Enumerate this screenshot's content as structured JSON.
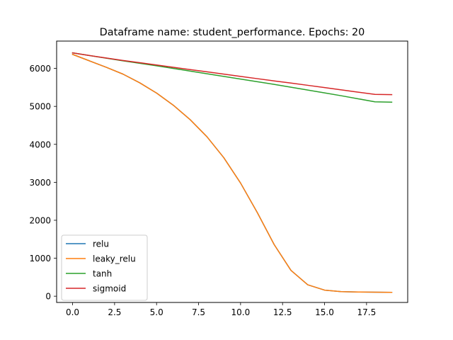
{
  "chart_data": {
    "type": "line",
    "title": "Dataframe name: student_performance. Epochs: 20",
    "xlabel": "",
    "ylabel": "",
    "x": [
      0,
      1,
      2,
      3,
      4,
      5,
      6,
      7,
      8,
      9,
      10,
      11,
      12,
      13,
      14,
      15,
      16,
      17,
      18,
      19
    ],
    "xlim": [
      -0.95,
      19.95
    ],
    "ylim": [
      -165,
      6720
    ],
    "xticks": [
      0,
      2.5,
      5,
      7.5,
      10,
      12.5,
      15,
      17.5
    ],
    "xtick_labels": [
      "0.0",
      "2.5",
      "5.0",
      "7.5",
      "10.0",
      "12.5",
      "15.0",
      "17.5"
    ],
    "yticks": [
      0,
      1000,
      2000,
      3000,
      4000,
      5000,
      6000
    ],
    "ytick_labels": [
      "0",
      "1000",
      "2000",
      "3000",
      "4000",
      "5000",
      "6000"
    ],
    "grid": false,
    "legend_position": "lower-left",
    "series": [
      {
        "name": "relu",
        "color": "#1f77b4",
        "values": [
          6370,
          6200,
          6030,
          5850,
          5620,
          5350,
          5030,
          4650,
          4200,
          3650,
          2980,
          2200,
          1360,
          680,
          300,
          160,
          120,
          110,
          105,
          100
        ]
      },
      {
        "name": "leaky_relu",
        "color": "#ff7f0e",
        "values": [
          6370,
          6200,
          6030,
          5850,
          5620,
          5350,
          5030,
          4650,
          4200,
          3650,
          2980,
          2200,
          1360,
          680,
          300,
          160,
          120,
          110,
          105,
          100
        ]
      },
      {
        "name": "tanh",
        "color": "#2ca02c",
        "values": [
          6410,
          6340,
          6270,
          6200,
          6135,
          6070,
          6000,
          5930,
          5860,
          5790,
          5720,
          5650,
          5580,
          5505,
          5430,
          5355,
          5280,
          5200,
          5120,
          5110
        ]
      },
      {
        "name": "sigmoid",
        "color": "#d62728",
        "values": [
          6410,
          6340,
          6275,
          6210,
          6150,
          6090,
          6030,
          5970,
          5910,
          5850,
          5790,
          5730,
          5670,
          5615,
          5555,
          5495,
          5435,
          5375,
          5315,
          5310
        ]
      }
    ]
  }
}
